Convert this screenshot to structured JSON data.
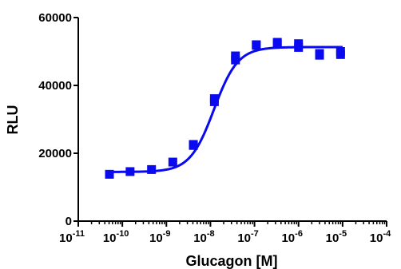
{
  "chart_data": {
    "type": "scatter",
    "xlabel": "Glucagon [M]",
    "ylabel": "RLU",
    "x_scale": "log10",
    "xlim": [
      1e-11,
      0.0001
    ],
    "ylim": [
      0,
      60000
    ],
    "x_ticks": [
      {
        "base": "10",
        "exp": "-11",
        "value": 1e-11
      },
      {
        "base": "10",
        "exp": "-10",
        "value": 1e-10
      },
      {
        "base": "10",
        "exp": "-9",
        "value": 1e-09
      },
      {
        "base": "10",
        "exp": "-8",
        "value": 1e-08
      },
      {
        "base": "10",
        "exp": "-7",
        "value": 1e-07
      },
      {
        "base": "10",
        "exp": "-6",
        "value": 1e-06
      },
      {
        "base": "10",
        "exp": "-5",
        "value": 1e-05
      },
      {
        "base": "10",
        "exp": "-4",
        "value": 0.0001
      }
    ],
    "y_ticks": [
      {
        "label": "0",
        "value": 0
      },
      {
        "label": "20000",
        "value": 20000
      },
      {
        "label": "40000",
        "value": 40000
      },
      {
        "label": "60000",
        "value": 60000
      }
    ],
    "grid": false,
    "marker": "square",
    "color": "#0a0af0",
    "points": [
      {
        "x": 5.1e-11,
        "y": 13800
      },
      {
        "x": 1.5e-10,
        "y": 14600
      },
      {
        "x": 4.6e-10,
        "y": 15200
      },
      {
        "x": 1.4e-09,
        "y": 17400
      },
      {
        "x": 4.1e-09,
        "y": 22300
      },
      {
        "x": 4.1e-09,
        "y": 22600
      },
      {
        "x": 1.23e-08,
        "y": 35200
      },
      {
        "x": 1.23e-08,
        "y": 36100
      },
      {
        "x": 3.7e-08,
        "y": 47500
      },
      {
        "x": 3.7e-08,
        "y": 48700
      },
      {
        "x": 1.1e-07,
        "y": 51800
      },
      {
        "x": 1.1e-07,
        "y": 52000
      },
      {
        "x": 3.3e-07,
        "y": 52300
      },
      {
        "x": 3.3e-07,
        "y": 52700
      },
      {
        "x": 1e-06,
        "y": 51200
      },
      {
        "x": 1e-06,
        "y": 52300
      },
      {
        "x": 3e-06,
        "y": 48900
      },
      {
        "x": 3e-06,
        "y": 49400
      },
      {
        "x": 9e-06,
        "y": 49100
      },
      {
        "x": 9e-06,
        "y": 50000
      }
    ],
    "fit": {
      "model": "sigmoidal dose-response",
      "bottom": 14500,
      "top": 51300,
      "log_ec50": -7.92,
      "hill_slope": 1.6,
      "x_range": [
        5e-11,
        1e-05
      ]
    }
  }
}
